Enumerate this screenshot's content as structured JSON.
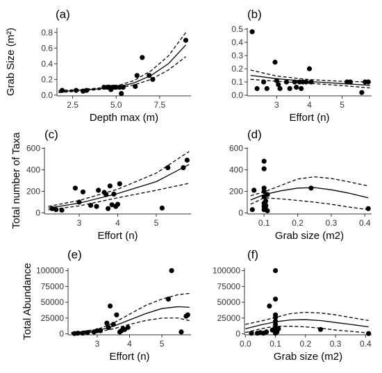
{
  "chart_data": [
    {
      "id": "a",
      "type": "scatter",
      "panel_label": "(a)",
      "xlabel": "Depth max (m)",
      "ylabel": "Grab Size (m²)",
      "xlim": [
        1.6,
        9.3
      ],
      "ylim": [
        -0.01,
        0.86
      ],
      "xticks": [
        2.5,
        5.0,
        7.5
      ],
      "xtick_labels": [
        "2.5",
        "5.0",
        "7.5"
      ],
      "yticks": [
        0.0,
        0.2,
        0.4,
        0.6,
        0.8
      ],
      "ytick_labels": [
        "0.0",
        "0.2",
        "0.4",
        "0.6",
        "0.8"
      ],
      "points": [
        [
          1.9,
          0.06
        ],
        [
          2.7,
          0.06
        ],
        [
          3.1,
          0.05
        ],
        [
          3.3,
          0.06
        ],
        [
          4.3,
          0.1
        ],
        [
          4.5,
          0.1
        ],
        [
          4.6,
          0.1
        ],
        [
          4.7,
          0.07
        ],
        [
          4.8,
          0.1
        ],
        [
          4.9,
          0.1
        ],
        [
          5.0,
          0.1
        ],
        [
          5.2,
          0.1
        ],
        [
          5.3,
          0.02
        ],
        [
          5.4,
          0.1
        ],
        [
          6.2,
          0.25
        ],
        [
          6.1,
          0.11
        ],
        [
          6.5,
          0.48
        ],
        [
          6.9,
          0.25
        ],
        [
          7.1,
          0.2
        ],
        [
          9.0,
          0.7
        ]
      ],
      "fit": [
        [
          1.7,
          0.045
        ],
        [
          3,
          0.063
        ],
        [
          4,
          0.08
        ],
        [
          5,
          0.1
        ],
        [
          6,
          0.153
        ],
        [
          7,
          0.25
        ],
        [
          8,
          0.4
        ],
        [
          9,
          0.64
        ]
      ],
      "ci_upper": [
        [
          1.7,
          0.058
        ],
        [
          3,
          0.073
        ],
        [
          4,
          0.09
        ],
        [
          5,
          0.115
        ],
        [
          6,
          0.183
        ],
        [
          7,
          0.31
        ],
        [
          8,
          0.5
        ],
        [
          9,
          0.8
        ]
      ],
      "ci_lower": [
        [
          1.7,
          0.032
        ],
        [
          3,
          0.052
        ],
        [
          4,
          0.07
        ],
        [
          5,
          0.088
        ],
        [
          6,
          0.128
        ],
        [
          7,
          0.2
        ],
        [
          8,
          0.32
        ],
        [
          9,
          0.49
        ]
      ]
    },
    {
      "id": "b",
      "type": "scatter",
      "panel_label": "(b)",
      "xlabel": "Effort (n)",
      "ylabel": "",
      "xlim": [
        2.1,
        5.9
      ],
      "ylim": [
        -0.005,
        0.51
      ],
      "xticks": [
        3,
        4,
        5
      ],
      "xtick_labels": [
        "3",
        "4",
        "5"
      ],
      "yticks": [
        0.0,
        0.1,
        0.2,
        0.3,
        0.4,
        0.5
      ],
      "ytick_labels": [
        "0.0",
        "0.1",
        "0.2",
        "0.3",
        "0.4",
        "0.5"
      ],
      "points": [
        [
          2.25,
          0.48
        ],
        [
          2.4,
          0.05
        ],
        [
          2.6,
          0.1
        ],
        [
          2.7,
          0.05
        ],
        [
          2.95,
          0.25
        ],
        [
          3.0,
          0.11
        ],
        [
          3.05,
          0.08
        ],
        [
          3.1,
          0.05
        ],
        [
          3.3,
          0.1
        ],
        [
          3.4,
          0.05
        ],
        [
          3.55,
          0.1
        ],
        [
          3.6,
          0.06
        ],
        [
          3.7,
          0.1
        ],
        [
          3.75,
          0.05
        ],
        [
          3.8,
          0.1
        ],
        [
          3.9,
          0.1
        ],
        [
          4.0,
          0.2
        ],
        [
          4.05,
          0.1
        ],
        [
          5.15,
          0.1
        ],
        [
          5.25,
          0.1
        ],
        [
          5.6,
          0.02
        ],
        [
          5.7,
          0.1
        ],
        [
          5.8,
          0.1
        ]
      ],
      "fit": [
        [
          2.2,
          0.15
        ],
        [
          3,
          0.125
        ],
        [
          4,
          0.103
        ],
        [
          5,
          0.088
        ],
        [
          5.85,
          0.075
        ]
      ],
      "ci_upper": [
        [
          2.2,
          0.19
        ],
        [
          3,
          0.145
        ],
        [
          4,
          0.118
        ],
        [
          5,
          0.105
        ],
        [
          5.85,
          0.1
        ]
      ],
      "ci_lower": [
        [
          2.2,
          0.12
        ],
        [
          3,
          0.105
        ],
        [
          4,
          0.09
        ],
        [
          5,
          0.073
        ],
        [
          5.85,
          0.055
        ]
      ]
    },
    {
      "id": "c",
      "type": "scatter",
      "panel_label": "(c)",
      "xlabel": "Effort (n)",
      "ylabel": "Total number of Taxa",
      "xlim": [
        2.1,
        5.9
      ],
      "ylim": [
        -10,
        610
      ],
      "xticks": [
        3,
        4,
        5
      ],
      "xtick_labels": [
        "3",
        "4",
        "5"
      ],
      "yticks": [
        0,
        200,
        400,
        600
      ],
      "ytick_labels": [
        "0",
        "200",
        "400",
        "600"
      ],
      "points": [
        [
          2.3,
          40
        ],
        [
          2.4,
          30
        ],
        [
          2.55,
          25
        ],
        [
          2.9,
          230
        ],
        [
          3.0,
          100
        ],
        [
          3.1,
          195
        ],
        [
          3.3,
          70
        ],
        [
          3.45,
          60
        ],
        [
          3.5,
          210
        ],
        [
          3.65,
          190
        ],
        [
          3.7,
          170
        ],
        [
          3.75,
          40
        ],
        [
          3.8,
          250
        ],
        [
          3.85,
          75
        ],
        [
          3.9,
          175
        ],
        [
          3.95,
          60
        ],
        [
          4.0,
          80
        ],
        [
          4.05,
          270
        ],
        [
          5.15,
          45
        ],
        [
          5.3,
          420
        ],
        [
          5.7,
          420
        ],
        [
          5.8,
          490
        ]
      ],
      "fit": [
        [
          2.2,
          45
        ],
        [
          3,
          90
        ],
        [
          4,
          180
        ],
        [
          5,
          290
        ],
        [
          5.85,
          450
        ]
      ],
      "ci_upper": [
        [
          2.2,
          60
        ],
        [
          3,
          115
        ],
        [
          4,
          220
        ],
        [
          5,
          370
        ],
        [
          5.85,
          570
        ]
      ],
      "ci_lower": [
        [
          2.2,
          28
        ],
        [
          3,
          65
        ],
        [
          4,
          140
        ],
        [
          5,
          210
        ],
        [
          5.85,
          275
        ]
      ]
    },
    {
      "id": "d",
      "type": "scatter",
      "panel_label": "(d)",
      "xlabel": "Grab size (m2)",
      "ylabel": "",
      "xlim": [
        0.05,
        0.42
      ],
      "ylim": [
        -10,
        610
      ],
      "xticks": [
        0.1,
        0.2,
        0.3,
        0.4
      ],
      "xtick_labels": [
        "0.1",
        "0.2",
        "0.3",
        "0.4"
      ],
      "yticks": [
        0,
        200,
        400,
        600
      ],
      "ytick_labels": [
        "0",
        "200",
        "400",
        "600"
      ],
      "points": [
        [
          0.065,
          30
        ],
        [
          0.07,
          210
        ],
        [
          0.1,
          30
        ],
        [
          0.1,
          60
        ],
        [
          0.1,
          90
        ],
        [
          0.1,
          150
        ],
        [
          0.1,
          200
        ],
        [
          0.1,
          230
        ],
        [
          0.1,
          410
        ],
        [
          0.1,
          480
        ],
        [
          0.105,
          60
        ],
        [
          0.105,
          70
        ],
        [
          0.105,
          110
        ],
        [
          0.11,
          20
        ],
        [
          0.11,
          170
        ],
        [
          0.24,
          230
        ],
        [
          0.41,
          40
        ]
      ],
      "fit": [
        [
          0.06,
          120
        ],
        [
          0.1,
          170
        ],
        [
          0.15,
          205
        ],
        [
          0.2,
          230
        ],
        [
          0.25,
          235
        ],
        [
          0.3,
          215
        ],
        [
          0.35,
          185
        ],
        [
          0.41,
          140
        ]
      ],
      "ci_upper": [
        [
          0.06,
          160
        ],
        [
          0.1,
          195
        ],
        [
          0.15,
          255
        ],
        [
          0.2,
          315
        ],
        [
          0.25,
          335
        ],
        [
          0.3,
          320
        ],
        [
          0.35,
          290
        ],
        [
          0.41,
          250
        ]
      ],
      "ci_lower": [
        [
          0.06,
          80
        ],
        [
          0.1,
          140
        ],
        [
          0.15,
          130
        ],
        [
          0.2,
          115
        ],
        [
          0.25,
          100
        ],
        [
          0.3,
          80
        ],
        [
          0.35,
          55
        ],
        [
          0.41,
          30
        ]
      ]
    },
    {
      "id": "e",
      "type": "scatter",
      "panel_label": "(e)",
      "xlabel": "Effort (n)",
      "ylabel": "Total Abundance",
      "xlim": [
        2.1,
        5.9
      ],
      "ylim": [
        -1500,
        104000
      ],
      "xticks": [
        3,
        4,
        5
      ],
      "xtick_labels": [
        "3",
        "4",
        "5"
      ],
      "yticks": [
        0,
        25000,
        50000,
        75000,
        100000
      ],
      "ytick_labels": [
        "0",
        "25000",
        "50000",
        "75000",
        "100000"
      ],
      "points": [
        [
          2.3,
          500
        ],
        [
          2.4,
          1000
        ],
        [
          2.55,
          1000
        ],
        [
          2.7,
          2000
        ],
        [
          2.9,
          3000
        ],
        [
          3.0,
          5000
        ],
        [
          3.1,
          5000
        ],
        [
          3.3,
          17000
        ],
        [
          3.35,
          10000
        ],
        [
          3.4,
          44000
        ],
        [
          3.5,
          15000
        ],
        [
          3.6,
          30000
        ],
        [
          3.7,
          3000
        ],
        [
          3.75,
          5000
        ],
        [
          3.8,
          8000
        ],
        [
          3.85,
          7000
        ],
        [
          3.95,
          10000
        ],
        [
          5.2,
          55000
        ],
        [
          5.3,
          100000
        ],
        [
          5.6,
          3000
        ],
        [
          5.75,
          28000
        ],
        [
          5.8,
          30000
        ]
      ],
      "fit": [
        [
          2.2,
          1000
        ],
        [
          3,
          5000
        ],
        [
          3.5,
          12000
        ],
        [
          4,
          22000
        ],
        [
          4.5,
          32000
        ],
        [
          5,
          40000
        ],
        [
          5.5,
          43000
        ],
        [
          5.85,
          42000
        ]
      ],
      "ci_upper": [
        [
          2.2,
          2000
        ],
        [
          3,
          7000
        ],
        [
          3.5,
          17000
        ],
        [
          4,
          31000
        ],
        [
          4.5,
          45000
        ],
        [
          5,
          55000
        ],
        [
          5.5,
          62000
        ],
        [
          5.85,
          64000
        ]
      ],
      "ci_lower": [
        [
          2.2,
          500
        ],
        [
          3,
          3000
        ],
        [
          3.5,
          8000
        ],
        [
          4,
          15000
        ],
        [
          4.5,
          21000
        ],
        [
          5,
          25000
        ],
        [
          5.5,
          25000
        ],
        [
          5.85,
          21000
        ]
      ]
    },
    {
      "id": "f",
      "type": "scatter",
      "panel_label": "(f)",
      "xlabel": "Grab size (m2)",
      "ylabel": "",
      "xlim": [
        -0.003,
        0.42
      ],
      "ylim": [
        -1500,
        104000
      ],
      "xticks": [
        0.0,
        0.1,
        0.2,
        0.3,
        0.4
      ],
      "xtick_labels": [
        "0.0",
        "0.1",
        "0.2",
        "0.3",
        "0.4"
      ],
      "yticks": [
        0,
        25000,
        50000,
        75000,
        100000
      ],
      "ytick_labels": [
        "0",
        "25000",
        "50000",
        "75000",
        "100000"
      ],
      "points": [
        [
          0.02,
          1000
        ],
        [
          0.04,
          1000
        ],
        [
          0.05,
          2000
        ],
        [
          0.06,
          1000
        ],
        [
          0.07,
          3000
        ],
        [
          0.08,
          44000
        ],
        [
          0.09,
          6000
        ],
        [
          0.1,
          1000
        ],
        [
          0.1,
          5000
        ],
        [
          0.1,
          10000
        ],
        [
          0.1,
          15000
        ],
        [
          0.1,
          20000
        ],
        [
          0.1,
          26000
        ],
        [
          0.1,
          30000
        ],
        [
          0.1,
          55000
        ],
        [
          0.1,
          100000
        ],
        [
          0.105,
          3000
        ],
        [
          0.11,
          8000
        ],
        [
          0.25,
          7000
        ],
        [
          0.41,
          500
        ]
      ],
      "fit": [
        [
          0,
          8000
        ],
        [
          0.05,
          14000
        ],
        [
          0.1,
          19000
        ],
        [
          0.15,
          22000
        ],
        [
          0.2,
          22500
        ],
        [
          0.25,
          21000
        ],
        [
          0.3,
          18000
        ],
        [
          0.35,
          15000
        ],
        [
          0.41,
          11000
        ]
      ],
      "ci_upper": [
        [
          0,
          15000
        ],
        [
          0.05,
          20000
        ],
        [
          0.1,
          26000
        ],
        [
          0.15,
          32000
        ],
        [
          0.2,
          34000
        ],
        [
          0.25,
          33000
        ],
        [
          0.3,
          30000
        ],
        [
          0.35,
          26000
        ],
        [
          0.41,
          21000
        ]
      ],
      "ci_lower": [
        [
          0,
          2000
        ],
        [
          0.05,
          8000
        ],
        [
          0.1,
          12000
        ],
        [
          0.15,
          12000
        ],
        [
          0.2,
          11000
        ],
        [
          0.25,
          9000
        ],
        [
          0.3,
          6000
        ],
        [
          0.35,
          4000
        ],
        [
          0.41,
          1500
        ]
      ]
    }
  ]
}
